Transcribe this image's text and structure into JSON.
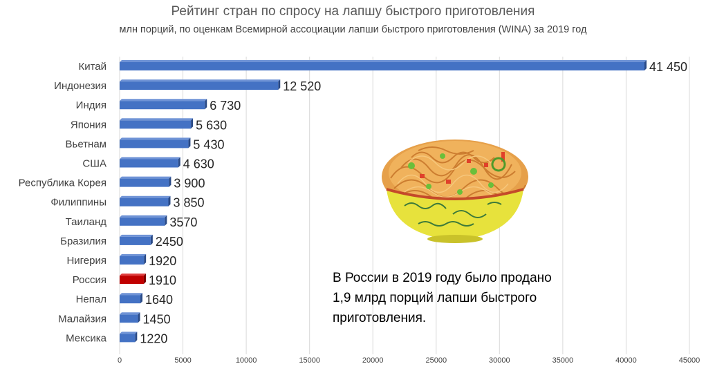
{
  "title": "Рейтинг стран по спросу на лапшу быстрого приготовления",
  "subtitle": "млн порций, по оценкам Всемирной ассоциации лапши быстрого приготовления (WINA) за 2019 год",
  "annotation": "В России в 2019 году было продано\n1,9 млрд порций лапши быстрого\nприготовления.",
  "colors": {
    "bar": "#4472C4",
    "highlight": "#C00000",
    "grid": "#D9D9D9"
  },
  "image": {
    "icon": "noodle-bowl-icon"
  },
  "chart_data": {
    "type": "bar",
    "orientation": "horizontal",
    "categories": [
      "Китай",
      "Индонезия",
      "Индия",
      "Япония",
      "Вьетнам",
      "США",
      "Республика Корея",
      "Филиппины",
      "Таиланд",
      "Бразилия",
      "Нигерия",
      "Россия",
      "Непал",
      "Малайзия",
      "Мексика"
    ],
    "values": [
      41450,
      12520,
      6730,
      5630,
      5430,
      4630,
      3900,
      3850,
      3570,
      2450,
      1920,
      1910,
      1640,
      1450,
      1220
    ],
    "value_labels": [
      "41 450",
      "12 520",
      "6 730",
      "5 630",
      "5 430",
      "4 630",
      "3 900",
      "3 850",
      "3570",
      "2450",
      "1920",
      "1910",
      "1640",
      "1450",
      "1220"
    ],
    "highlight": "Россия",
    "xlim": [
      0,
      45000
    ],
    "xticks": [
      0,
      5000,
      10000,
      15000,
      20000,
      25000,
      30000,
      35000,
      40000,
      45000
    ],
    "grid": true,
    "legend": "none"
  }
}
